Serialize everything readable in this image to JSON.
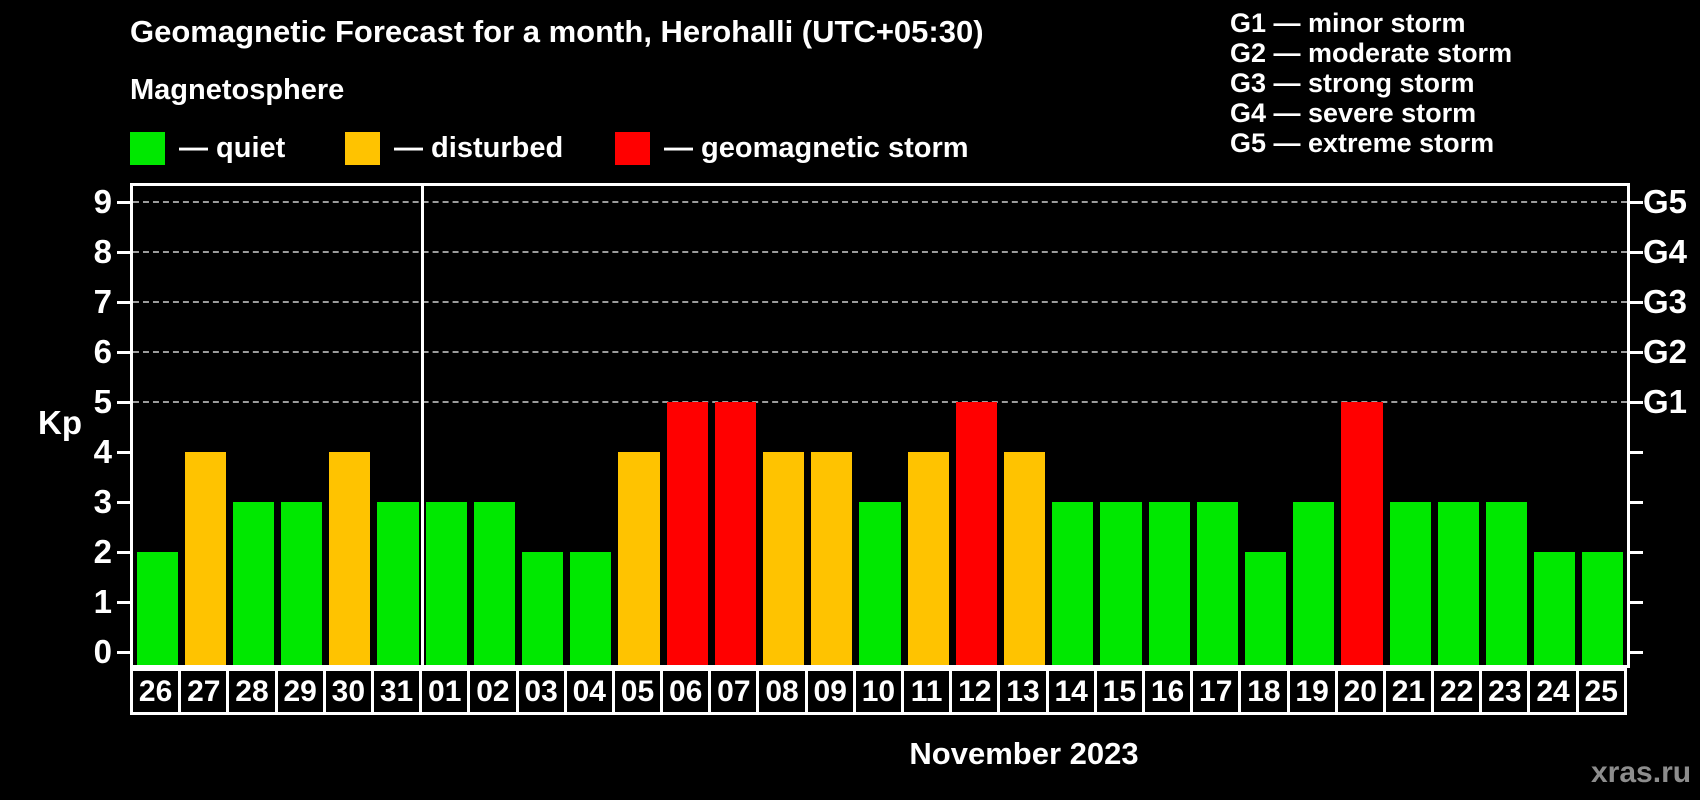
{
  "title": "Geomagnetic Forecast for a month, Herohalli (UTC+05:30)",
  "magnetosphere": {
    "heading": "Magnetosphere",
    "legend": [
      {
        "key": "quiet",
        "label": "— quiet",
        "color": "#00e800"
      },
      {
        "key": "disturbed",
        "label": "— disturbed",
        "color": "#ffc300"
      },
      {
        "key": "storm",
        "label": "— geomagnetic storm",
        "color": "#ff0000"
      }
    ]
  },
  "storm_scale": [
    "G1 — minor storm",
    "G2 — moderate storm",
    "G3 — strong storm",
    "G4 — severe storm",
    "G5 — extreme storm"
  ],
  "watermark": "xras.ru",
  "chart_data": {
    "type": "bar",
    "title": "Geomagnetic Forecast for a month, Herohalli (UTC+05:30)",
    "xlabel": "November 2023",
    "ylabel": "Kp",
    "ylim": [
      0,
      9
    ],
    "yticks": [
      0,
      1,
      2,
      3,
      4,
      5,
      6,
      7,
      8,
      9
    ],
    "gridlines_at_kp": [
      5,
      6,
      7,
      8,
      9
    ],
    "grid_style": "dashed horizontal lines at Kp 5-9 only",
    "right_axis": [
      {
        "kp": 5,
        "label": "G1"
      },
      {
        "kp": 6,
        "label": "G2"
      },
      {
        "kp": 7,
        "label": "G3"
      },
      {
        "kp": 8,
        "label": "G4"
      },
      {
        "kp": 9,
        "label": "G5"
      }
    ],
    "month_divider_after_index": 5,
    "categories": [
      "26",
      "27",
      "28",
      "29",
      "30",
      "31",
      "01",
      "02",
      "03",
      "04",
      "05",
      "06",
      "07",
      "08",
      "09",
      "10",
      "11",
      "12",
      "13",
      "14",
      "15",
      "16",
      "17",
      "18",
      "19",
      "20",
      "21",
      "22",
      "23",
      "24",
      "25"
    ],
    "values": [
      2,
      4,
      3,
      3,
      4,
      3,
      3,
      3,
      2,
      2,
      4,
      5,
      5,
      4,
      4,
      3,
      4,
      5,
      4,
      3,
      3,
      3,
      3,
      2,
      3,
      5,
      3,
      3,
      3,
      2,
      2
    ],
    "statuses": [
      "quiet",
      "disturbed",
      "quiet",
      "quiet",
      "disturbed",
      "quiet",
      "quiet",
      "quiet",
      "quiet",
      "quiet",
      "disturbed",
      "storm",
      "storm",
      "disturbed",
      "disturbed",
      "quiet",
      "disturbed",
      "storm",
      "disturbed",
      "quiet",
      "quiet",
      "quiet",
      "quiet",
      "quiet",
      "quiet",
      "storm",
      "quiet",
      "quiet",
      "quiet",
      "quiet",
      "quiet"
    ]
  }
}
